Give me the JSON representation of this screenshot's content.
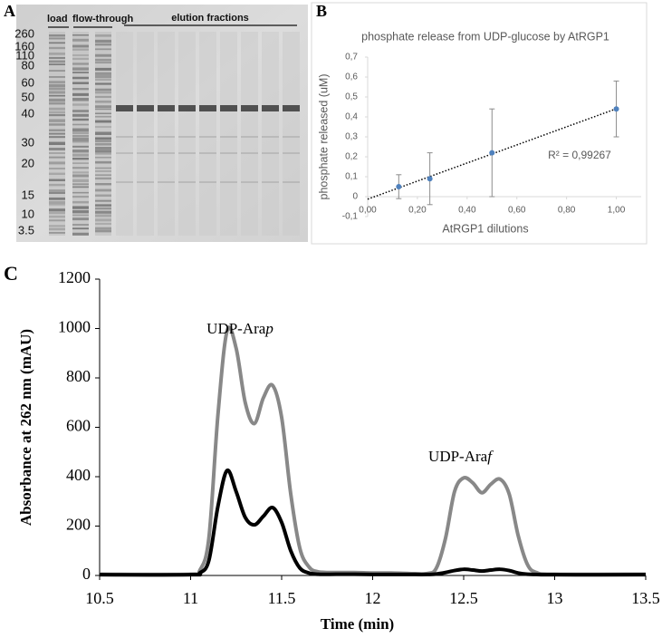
{
  "gel": {
    "panel_label": "A",
    "markers": [
      260,
      160,
      110,
      80,
      60,
      50,
      40,
      30,
      20,
      15,
      10,
      3.5
    ],
    "lane_labels": [
      "load",
      "flow-through",
      "elution fractions"
    ]
  },
  "chart_data": [
    {
      "type": "scatter",
      "panel_label": "B",
      "title": "phosphate release from UDP-glucose by AtRGP1",
      "x_label": "AtRGP1  dilutions",
      "y_label": "phosphate released (uM)",
      "x": [
        0.125,
        0.25,
        0.5,
        1.0
      ],
      "series": [
        {
          "color": "#4f81bd",
          "values": [
            0.05,
            0.09,
            0.22,
            0.44
          ],
          "errors": [
            0.06,
            0.13,
            0.22,
            0.14
          ]
        }
      ],
      "xlim": [
        0,
        1.1
      ],
      "xticks": [
        {
          "value": 0,
          "label": "0,00"
        },
        {
          "value": 0.2,
          "label": "0,20"
        },
        {
          "value": 0.4,
          "label": "0,40"
        },
        {
          "value": 0.6,
          "label": "0,60"
        },
        {
          "value": 0.8,
          "label": "0,80"
        },
        {
          "value": 1,
          "label": "1,00"
        }
      ],
      "ylim": [
        -0.1,
        0.7
      ],
      "yticks": [
        {
          "value": -0.1,
          "label": "-0,1"
        },
        {
          "value": 0,
          "label": "0"
        },
        {
          "value": 0.1,
          "label": "0,1"
        },
        {
          "value": 0.2,
          "label": "0,2"
        },
        {
          "value": 0.3,
          "label": "0,3"
        },
        {
          "value": 0.4,
          "label": "0,4"
        },
        {
          "value": 0.5,
          "label": "0,5"
        },
        {
          "value": 0.6,
          "label": "0,6"
        },
        {
          "value": 0.7,
          "label": "0,7"
        }
      ],
      "annotation": "R² = 0,99267",
      "trendline": true
    },
    {
      "type": "line",
      "panel_label": "C",
      "x_label": "Time (min)",
      "y_label": "Absorbance at 262 nm (mAU)",
      "x": [
        10.5,
        11.0,
        11.05,
        11.1,
        11.15,
        11.2,
        11.25,
        11.3,
        11.35,
        11.4,
        11.45,
        11.5,
        11.55,
        11.6,
        11.65,
        11.7,
        11.8,
        11.9,
        12.0,
        12.1,
        12.2,
        12.3,
        12.35,
        12.4,
        12.45,
        12.5,
        12.55,
        12.6,
        12.65,
        12.7,
        12.75,
        12.8,
        12.85,
        12.9,
        13.0,
        13.5
      ],
      "series": [
        {
          "color": "#888888",
          "values": [
            5,
            5,
            20,
            150,
            650,
            990,
            920,
            700,
            615,
            720,
            770,
            640,
            330,
            110,
            35,
            15,
            12,
            12,
            10,
            10,
            8,
            8,
            30,
            150,
            340,
            395,
            375,
            335,
            370,
            390,
            330,
            160,
            45,
            12,
            5,
            5
          ]
        },
        {
          "color": "#000000",
          "values": [
            3,
            3,
            10,
            60,
            280,
            425,
            340,
            235,
            205,
            240,
            275,
            215,
            100,
            30,
            10,
            5,
            5,
            5,
            4,
            4,
            4,
            4,
            6,
            12,
            20,
            25,
            22,
            18,
            22,
            25,
            20,
            10,
            5,
            4,
            3,
            3
          ]
        }
      ],
      "xlim": [
        10.5,
        13.5
      ],
      "xticks": [
        10.5,
        11,
        11.5,
        12,
        12.5,
        13,
        13.5
      ],
      "ylim": [
        0,
        1200
      ],
      "yticks": [
        0,
        200,
        400,
        600,
        800,
        1000,
        1200
      ],
      "annotations": [
        "UDP-Arap",
        "UDP-Araf"
      ]
    }
  ]
}
